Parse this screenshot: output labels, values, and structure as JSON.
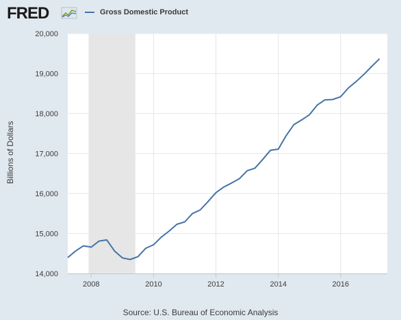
{
  "header": {
    "logo_text": "FRED",
    "legend_label": "Gross Domestic Product"
  },
  "colors": {
    "background": "#e1e9f0",
    "plot_bg": "#ffffff",
    "line": "#4572a7",
    "recession": "#e6e6e6",
    "grid": "#e6e6e6",
    "text": "#3a3a3a"
  },
  "chart_data": {
    "type": "line",
    "title": "",
    "xlabel": "",
    "ylabel": "Billions of Dollars",
    "ylim": [
      14000,
      20000
    ],
    "xlim": [
      "2007-04-01",
      "2017-07-01"
    ],
    "yticks": [
      14000,
      15000,
      16000,
      17000,
      18000,
      19000,
      20000
    ],
    "ytick_labels": [
      "14,000",
      "15,000",
      "16,000",
      "17,000",
      "18,000",
      "19,000",
      "20,000"
    ],
    "xticks": [
      "2008",
      "2010",
      "2012",
      "2014",
      "2016"
    ],
    "grid": true,
    "recession": {
      "start": "2007-12-01",
      "end": "2009-06-01"
    },
    "series": [
      {
        "name": "Gross Domestic Product",
        "x": [
          "2007-04-01",
          "2007-07-01",
          "2007-10-01",
          "2008-01-01",
          "2008-04-01",
          "2008-07-01",
          "2008-10-01",
          "2009-01-01",
          "2009-04-01",
          "2009-07-01",
          "2009-10-01",
          "2010-01-01",
          "2010-04-01",
          "2010-07-01",
          "2010-10-01",
          "2011-01-01",
          "2011-04-01",
          "2011-07-01",
          "2011-10-01",
          "2012-01-01",
          "2012-04-01",
          "2012-07-01",
          "2012-10-01",
          "2013-01-01",
          "2013-04-01",
          "2013-07-01",
          "2013-10-01",
          "2014-01-01",
          "2014-04-01",
          "2014-07-01",
          "2014-10-01",
          "2015-01-01",
          "2015-04-01",
          "2015-07-01",
          "2015-10-01",
          "2016-01-01",
          "2016-04-01",
          "2016-07-01",
          "2016-10-01",
          "2017-01-01",
          "2017-04-01"
        ],
        "values": [
          14400,
          14560,
          14690,
          14660,
          14810,
          14840,
          14560,
          14390,
          14350,
          14420,
          14630,
          14720,
          14910,
          15060,
          15230,
          15290,
          15500,
          15590,
          15800,
          16020,
          16160,
          16260,
          16370,
          16570,
          16630,
          16850,
          17080,
          17110,
          17440,
          17720,
          17840,
          17970,
          18210,
          18340,
          18350,
          18420,
          18640,
          18800,
          18980,
          19180,
          19370
        ]
      }
    ],
    "source": "Source: U.S. Bureau of Economic Analysis"
  }
}
